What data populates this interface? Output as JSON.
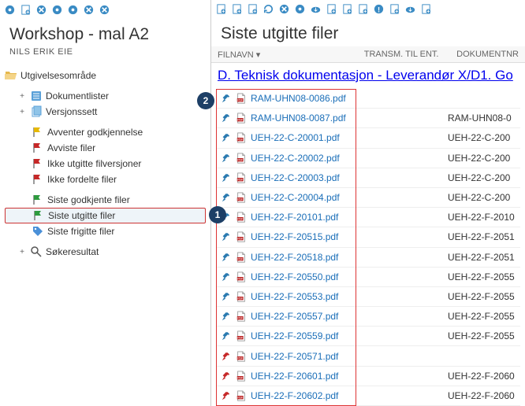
{
  "left": {
    "title": "Workshop - mal A2",
    "user": "NILS ERIK EIE",
    "root": "Utgivelsesområde",
    "nodes": [
      {
        "label": "Dokumentlister",
        "icon": "doc-list",
        "expand": "+"
      },
      {
        "label": "Versjonssett",
        "icon": "version",
        "expand": "+"
      }
    ],
    "status_nodes": [
      {
        "label": "Avventer godkjennelse",
        "icon": "flag-yellow"
      },
      {
        "label": "Avviste filer",
        "icon": "flag-red"
      },
      {
        "label": "Ikke utgitte filversjoner",
        "icon": "flag-red"
      },
      {
        "label": "Ikke fordelte filer",
        "icon": "flag-red"
      }
    ],
    "approved_nodes": [
      {
        "label": "Siste godkjente filer",
        "icon": "flag-green"
      },
      {
        "label": "Siste utgitte filer",
        "icon": "flag-green",
        "selected": true
      },
      {
        "label": "Siste frigitte filer",
        "icon": "tag-blue"
      }
    ],
    "search": {
      "label": "Søkeresultat",
      "expand": "+"
    }
  },
  "right": {
    "title": "Siste utgitte filer",
    "columns": {
      "c1": "FILNAVN",
      "c2": "TRANSM. TIL ENT.",
      "c3": "DOKUMENTNR"
    },
    "breadcrumb": "D. Teknisk dokumentasjon - Leverandør X/D1. Go",
    "rows": [
      {
        "name": "RAM-UHN08-0086.pdf",
        "pin": "blue",
        "doc": ""
      },
      {
        "name": "RAM-UHN08-0087.pdf",
        "pin": "blue",
        "doc": "RAM-UHN08-0"
      },
      {
        "name": "UEH-22-C-20001.pdf",
        "pin": "blue",
        "doc": "UEH-22-C-200"
      },
      {
        "name": "UEH-22-C-20002.pdf",
        "pin": "blue",
        "doc": "UEH-22-C-200"
      },
      {
        "name": "UEH-22-C-20003.pdf",
        "pin": "blue",
        "doc": "UEH-22-C-200"
      },
      {
        "name": "UEH-22-C-20004.pdf",
        "pin": "blue",
        "doc": "UEH-22-C-200"
      },
      {
        "name": "UEH-22-F-20101.pdf",
        "pin": "blue",
        "doc": "UEH-22-F-2010"
      },
      {
        "name": "UEH-22-F-20515.pdf",
        "pin": "blue",
        "doc": "UEH-22-F-2051"
      },
      {
        "name": "UEH-22-F-20518.pdf",
        "pin": "blue",
        "doc": "UEH-22-F-2051"
      },
      {
        "name": "UEH-22-F-20550.pdf",
        "pin": "blue",
        "doc": "UEH-22-F-2055"
      },
      {
        "name": "UEH-22-F-20553.pdf",
        "pin": "blue",
        "doc": "UEH-22-F-2055"
      },
      {
        "name": "UEH-22-F-20557.pdf",
        "pin": "blue",
        "doc": "UEH-22-F-2055"
      },
      {
        "name": "UEH-22-F-20559.pdf",
        "pin": "blue",
        "doc": "UEH-22-F-2055"
      },
      {
        "name": "UEH-22-F-20571.pdf",
        "pin": "red",
        "doc": ""
      },
      {
        "name": "UEH-22-F-20601.pdf",
        "pin": "red",
        "doc": "UEH-22-F-2060"
      },
      {
        "name": "UEH-22-F-20602.pdf",
        "pin": "red",
        "doc": "UEH-22-F-2060"
      }
    ]
  },
  "callouts": {
    "one": "1",
    "two": "2"
  },
  "colors": {
    "accent": "#2a7ab0",
    "border_highlight": "#d33",
    "callout_bg": "#1d3f66",
    "pin_blue": "#2a7ab0",
    "pin_red": "#c62828",
    "flag_yellow": "#e6b800",
    "flag_red": "#c62828",
    "flag_green": "#2e9b3f"
  },
  "icons": {
    "pdf_fill": "#ffffff",
    "pdf_border": "#888",
    "pdf_badge": "#b22"
  }
}
